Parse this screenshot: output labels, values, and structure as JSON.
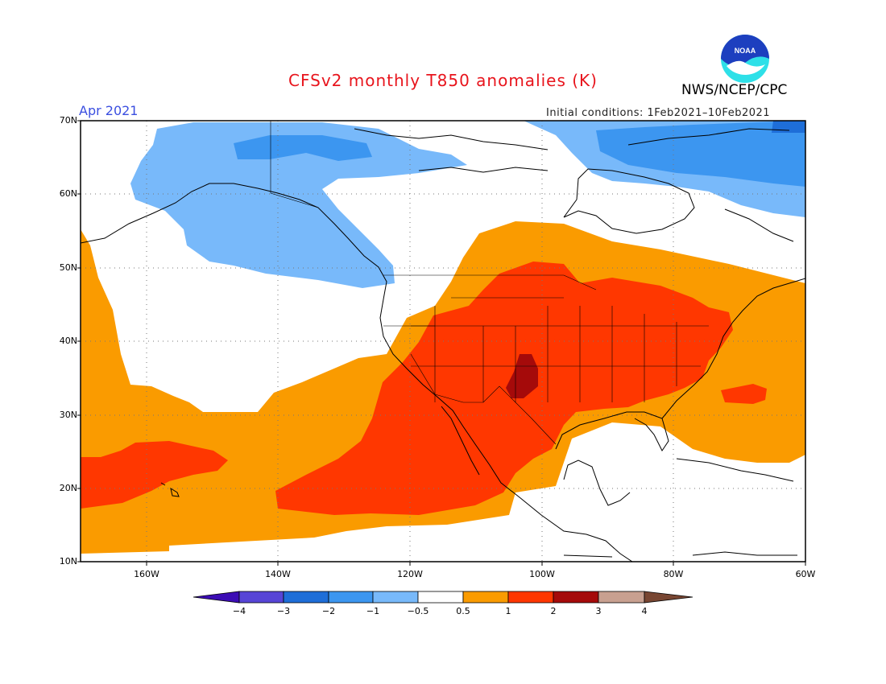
{
  "header": {
    "title": "CFSv2 monthly T850 anomalies (K)",
    "agency": "NWS/NCEP/CPC",
    "logo_text": "NOAA",
    "valid_month": "Apr 2021",
    "init_label": "Initial conditions:",
    "init_range": "1Feb2021–10Feb2021"
  },
  "map": {
    "lat_labels": [
      "70N",
      "60N",
      "50N",
      "40N",
      "30N",
      "20N",
      "10N"
    ],
    "lon_labels": [
      "160W",
      "140W",
      "120W",
      "100W",
      "80W",
      "60W"
    ],
    "land_outline_color": "#000000",
    "grid_style": "dotted"
  },
  "colorbar": {
    "labels": [
      "−4",
      "−3",
      "−2",
      "−1",
      "−0.5",
      "0.5",
      "1",
      "2",
      "3",
      "4"
    ],
    "colors": [
      "#3c0db5",
      "#5745d6",
      "#1e6ed8",
      "#3c96f0",
      "#78b9fa",
      "#ffffff",
      "#fa9b00",
      "#ff3700",
      "#a50a0a",
      "#c8a090",
      "#784632"
    ]
  },
  "colors": {
    "title": "#e8141c",
    "month": "#3b4fe0",
    "noaa_blue": "#1d3fbf",
    "noaa_cyan": "#2ee0e8"
  }
}
